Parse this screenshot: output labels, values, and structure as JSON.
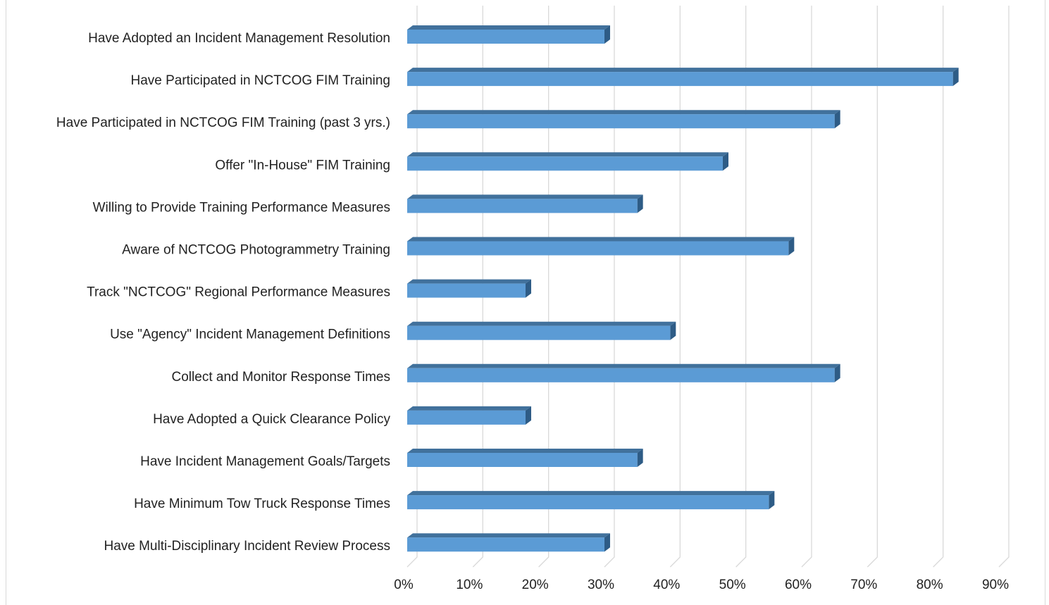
{
  "chart_data": {
    "type": "bar3d_horizontal",
    "categories": [
      "Have Adopted an Incident Management Resolution",
      "Have Participated in NCTCOG FIM Training",
      "Have Participated in NCTCOG FIM Training (past 3 yrs.)",
      "Offer \"In-House\" FIM Training",
      "Willing to Provide Training Performance Measures",
      "Aware of NCTCOG Photogrammetry Training",
      "Track \"NCTCOG\" Regional Performance Measures",
      "Use \"Agency\" Incident Management Definitions",
      "Collect and Monitor Response Times",
      "Have Adopted a Quick Clearance Policy",
      "Have Incident Management Goals/Targets",
      "Have Minimum Tow Truck Response Times",
      "Have Multi-Disciplinary Incident Review Process"
    ],
    "values": [
      30,
      83,
      65,
      48,
      35,
      58,
      18,
      40,
      65,
      18,
      35,
      55,
      30
    ],
    "color": "#5b9bd5",
    "xlim": [
      0,
      90
    ],
    "xticks": [
      {
        "value": 0,
        "label": "0%"
      },
      {
        "value": 10,
        "label": "10%"
      },
      {
        "value": 20,
        "label": "20%"
      },
      {
        "value": 30,
        "label": "30%"
      },
      {
        "value": 40,
        "label": "40%"
      },
      {
        "value": 50,
        "label": "50%"
      },
      {
        "value": 60,
        "label": "60%"
      },
      {
        "value": 70,
        "label": "70%"
      },
      {
        "value": 80,
        "label": "80%"
      },
      {
        "value": 90,
        "label": "90%"
      }
    ],
    "grid": true
  }
}
